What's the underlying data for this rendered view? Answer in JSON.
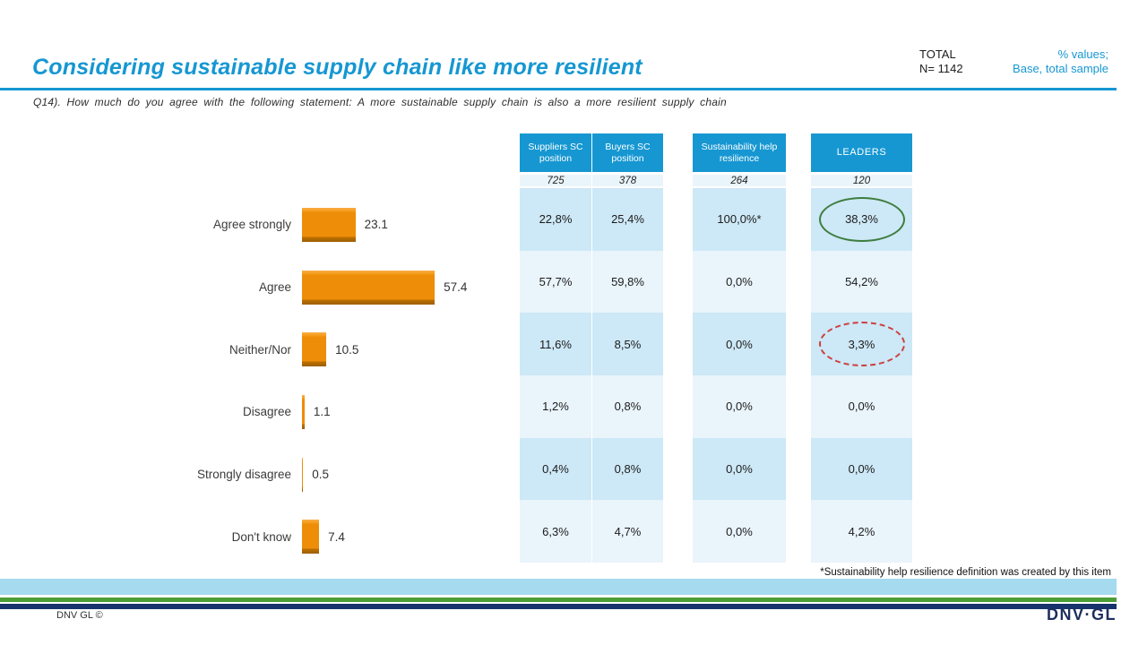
{
  "slide": {
    "title": "Considering sustainable supply chain like more resilient",
    "total_label": "TOTAL",
    "total_value": "N= 1142",
    "note_line1": "% values;",
    "note_line2": "Base, total sample",
    "question": "Q14). How much do you agree with the following statement: A more sustainable supply chain is also a more resilient supply chain",
    "footnote": "*Sustainability help resilience definition was created by this item",
    "copyright": "DNV GL ©",
    "logo": "DNV·GL"
  },
  "chart": {
    "bars": [
      {
        "label": "Agree strongly",
        "value_text": "23.1"
      },
      {
        "label": "Agree",
        "value_text": "57.4"
      },
      {
        "label": "Neither/Nor",
        "value_text": "10.5"
      },
      {
        "label": "Disagree",
        "value_text": "1.1"
      },
      {
        "label": "Strongly disagree",
        "value_text": "0.5"
      },
      {
        "label": "Don't know",
        "value_text": "7.4"
      }
    ]
  },
  "table": {
    "columns": [
      {
        "header": "Suppliers SC position",
        "base": "725",
        "values": [
          "22,8%",
          "57,7%",
          "11,6%",
          "1,2%",
          "0,4%",
          "6,3%"
        ]
      },
      {
        "header": "Buyers SC position",
        "base": "378",
        "values": [
          "25,4%",
          "59,8%",
          "8,5%",
          "0,8%",
          "0,8%",
          "4,7%"
        ]
      },
      {
        "header": "Sustainability help resilience",
        "base": "264",
        "values": [
          "100,0%*",
          "0,0%",
          "0,0%",
          "0,0%",
          "0,0%",
          "0,0%"
        ]
      },
      {
        "header": "LEADERS",
        "base": "120",
        "values": [
          "38,3%",
          "54,2%",
          "3,3%",
          "0,0%",
          "0,0%",
          "4,2%"
        ]
      }
    ]
  },
  "colors": {
    "accent_blue": "#1697D2",
    "bar_orange": "#EE8D08",
    "row_dark": "#CDE8F6",
    "row_light": "#E9F4FB",
    "footer_light_blue": "#A5DAEF",
    "footer_green": "#4A9E35",
    "footer_navy": "#16336B",
    "ellipse_green": "#3E7D3E",
    "ellipse_red": "#CC3F3F"
  },
  "chart_data": {
    "type": "bar",
    "orientation": "horizontal",
    "title": "Considering sustainable supply chain like more resilient",
    "categories": [
      "Agree strongly",
      "Agree",
      "Neither/Nor",
      "Disagree",
      "Strongly disagree",
      "Don't know"
    ],
    "values": [
      23.1,
      57.4,
      10.5,
      1.1,
      0.5,
      7.4
    ],
    "xlim": [
      0,
      100
    ],
    "grid": false,
    "series": [
      {
        "name": "TOTAL",
        "base": 1142,
        "values": [
          23.1,
          57.4,
          10.5,
          1.1,
          0.5,
          7.4
        ]
      },
      {
        "name": "Suppliers SC position",
        "base": 725,
        "values": [
          22.8,
          57.7,
          11.6,
          1.2,
          0.4,
          6.3
        ]
      },
      {
        "name": "Buyers SC position",
        "base": 378,
        "values": [
          25.4,
          59.8,
          8.5,
          0.8,
          0.8,
          4.7
        ]
      },
      {
        "name": "Sustainability help resilience",
        "base": 264,
        "values": [
          100.0,
          0.0,
          0.0,
          0.0,
          0.0,
          0.0
        ]
      },
      {
        "name": "LEADERS",
        "base": 120,
        "values": [
          38.3,
          54.2,
          3.3,
          0.0,
          0.0,
          4.2
        ]
      }
    ],
    "annotations": [
      {
        "target": "LEADERS / Agree strongly = 38,3%",
        "shape": "solid green ellipse"
      },
      {
        "target": "LEADERS / Neither/Nor = 3,3%",
        "shape": "dashed red ellipse"
      }
    ]
  }
}
